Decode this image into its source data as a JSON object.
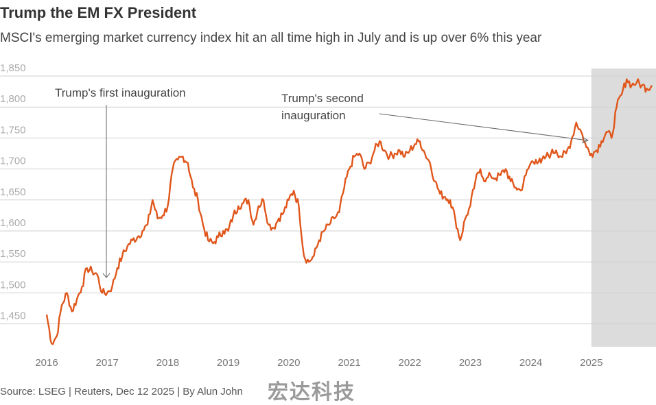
{
  "header": {
    "title": "Trump the EM FX President",
    "subtitle": "MSCI's emerging market currency index hit an all time high in July and is up over 6% this year"
  },
  "footer": {
    "source": "Source: LSEG | Reuters, Dec 12 2025 | By Alun John",
    "watermark": "宏达科技"
  },
  "chart_data": {
    "type": "line",
    "title": "Trump the EM FX President",
    "xlabel": "",
    "ylabel": "",
    "ylim": [
      1400,
      1850
    ],
    "yticks": [
      1450,
      1500,
      1550,
      1600,
      1650,
      1700,
      1750,
      1800,
      1850
    ],
    "ytick_labels": [
      "1,450",
      "1,500",
      "1,550",
      "1,600",
      "1,650",
      "1,700",
      "1,750",
      "1,800",
      "1,850"
    ],
    "xticks": [
      "2016",
      "2017",
      "2018",
      "2019",
      "2020",
      "2021",
      "2022",
      "2023",
      "2024",
      "2025"
    ],
    "xlim": [
      2016,
      2026
    ],
    "grid": "horizontal",
    "line_color": "#e0561b",
    "shaded_region": {
      "from": 2025,
      "to": 2026,
      "color": "#dcdcdc"
    },
    "annotations": [
      {
        "text_lines": [
          "Trump's first inauguration"
        ],
        "x": 2017.05
      },
      {
        "text_lines": [
          "Trump's second",
          "inauguration"
        ],
        "x": 2025.05
      }
    ],
    "series": [
      {
        "x_start": 2016,
        "step": "month",
        "values": [
          1465,
          1418,
          1430,
          1480,
          1500,
          1470,
          1490,
          1510,
          1540,
          1535,
          1530,
          1500,
          1500,
          1510,
          1540,
          1560,
          1575,
          1585,
          1590,
          1600,
          1610,
          1650,
          1620,
          1625,
          1640,
          1700,
          1715,
          1720,
          1710,
          1670,
          1650,
          1610,
          1585,
          1580,
          1590,
          1600,
          1600,
          1625,
          1640,
          1645,
          1650,
          1610,
          1640,
          1650,
          1610,
          1605,
          1620,
          1630,
          1650,
          1665,
          1640,
          1560,
          1550,
          1560,
          1585,
          1600,
          1610,
          1620,
          1630,
          1670,
          1700,
          1720,
          1725,
          1700,
          1710,
          1730,
          1745,
          1730,
          1720,
          1725,
          1730,
          1720,
          1730,
          1740,
          1745,
          1725,
          1710,
          1680,
          1660,
          1655,
          1650,
          1620,
          1585,
          1620,
          1640,
          1680,
          1700,
          1680,
          1690,
          1685,
          1690,
          1700,
          1680,
          1670,
          1665,
          1690,
          1710,
          1715,
          1710,
          1720,
          1725,
          1730,
          1720,
          1725,
          1745,
          1775,
          1760,
          1735,
          1725,
          1730,
          1745,
          1760,
          1750,
          1800,
          1820,
          1845,
          1835,
          1840,
          1835,
          1830,
          1835
        ]
      }
    ]
  }
}
